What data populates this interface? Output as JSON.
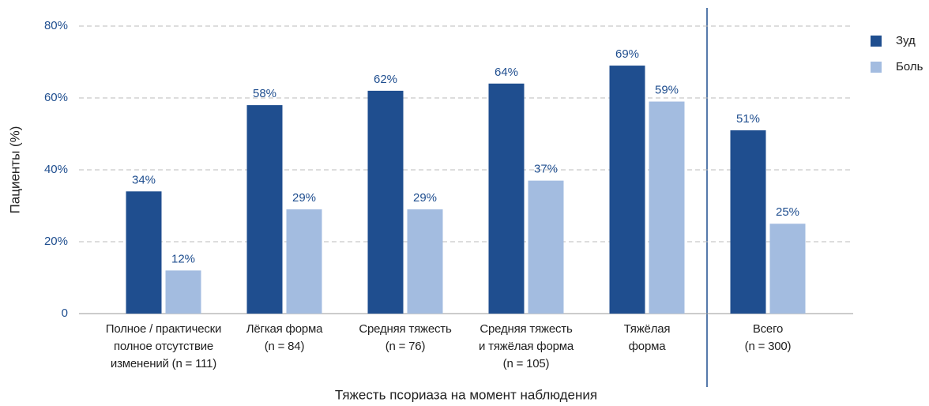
{
  "chart_data": {
    "type": "bar",
    "x_label": "Тяжесть псориаза на момент наблюдения",
    "y_label": "Пациенты (%)",
    "categories": [
      "Полное / практически\nполное отсутствие\nизменений (n = 111)",
      "Лёгкая форма\n(n = 84)",
      "Средняя тяжесть\n(n = 76)",
      "Средняя тяжесть\nи тяжёлая форма\n(n = 105)",
      "Тяжёлая\nформа",
      "Всего\n(n = 300)"
    ],
    "series": [
      {
        "name": "Зуд",
        "color": "#1f4e8f",
        "values": [
          34,
          58,
          62,
          64,
          69,
          51
        ],
        "value_labels": [
          "34%",
          "58%",
          "62%",
          "64%",
          "69%",
          "51%"
        ]
      },
      {
        "name": "Боль",
        "color": "#a3bce0",
        "values": [
          12,
          29,
          29,
          37,
          59,
          25
        ],
        "value_labels": [
          "12%",
          "29%",
          "29%",
          "37%",
          "59%",
          "25%"
        ]
      }
    ],
    "ylim": [
      0,
      80
    ],
    "yticks": [
      0,
      {
        "value": 20,
        "label": "20%"
      },
      {
        "value": 40,
        "label": "40%"
      },
      {
        "value": 60,
        "label": "60%"
      },
      {
        "value": 80,
        "label": "80%"
      }
    ],
    "grid": true,
    "legend": "right"
  }
}
